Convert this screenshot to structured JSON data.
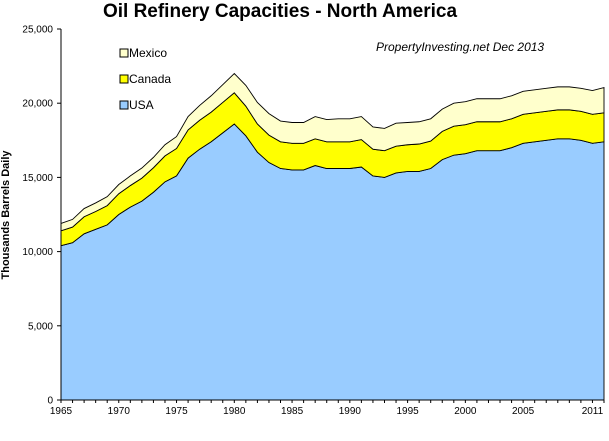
{
  "chart_data": {
    "type": "area",
    "stacked": true,
    "title": "Oil Refinery Capacities - North America",
    "ylabel": "Thousands Barrels Daily",
    "xlabel": "",
    "annotation": "PropertyInvesting.net  Dec 2013",
    "xlim": [
      1965,
      2012
    ],
    "ylim": [
      0,
      25000
    ],
    "yticks": [
      0,
      5000,
      10000,
      15000,
      20000,
      25000
    ],
    "ytick_labels": [
      "0",
      "5,000",
      "10,000",
      "15,000",
      "20,000",
      "25,000"
    ],
    "xticks": [
      1965,
      1970,
      1975,
      1980,
      1985,
      1990,
      1995,
      2000,
      2005,
      2011
    ],
    "xtick_labels": [
      "1965",
      "1970",
      "1975",
      "1980",
      "1985",
      "1990",
      "1995",
      "2000",
      "2005",
      "2011"
    ],
    "legend_position": "top-left",
    "x": [
      1965,
      1966,
      1967,
      1968,
      1969,
      1970,
      1971,
      1972,
      1973,
      1974,
      1975,
      1976,
      1977,
      1978,
      1979,
      1980,
      1981,
      1982,
      1983,
      1984,
      1985,
      1986,
      1987,
      1988,
      1989,
      1990,
      1991,
      1992,
      1993,
      1994,
      1995,
      1996,
      1997,
      1998,
      1999,
      2000,
      2001,
      2002,
      2003,
      2004,
      2005,
      2006,
      2007,
      2008,
      2009,
      2010,
      2011,
      2012
    ],
    "series": [
      {
        "name": "USA",
        "color": "#99ccff",
        "values": [
          10400,
          10600,
          11200,
          11500,
          11800,
          12500,
          13000,
          13400,
          14000,
          14700,
          15100,
          16300,
          16900,
          17400,
          18000,
          18600,
          17800,
          16700,
          16000,
          15600,
          15500,
          15500,
          15800,
          15600,
          15600,
          15600,
          15700,
          15100,
          15000,
          15300,
          15400,
          15400,
          15600,
          16200,
          16500,
          16600,
          16800,
          16800,
          16800,
          17000,
          17300,
          17400,
          17500,
          17600,
          17600,
          17500,
          17300,
          17400
        ]
      },
      {
        "name": "Canada",
        "color": "#ffff00",
        "values": [
          1000,
          1050,
          1150,
          1200,
          1300,
          1400,
          1450,
          1550,
          1650,
          1750,
          1850,
          1900,
          1950,
          2000,
          2050,
          2100,
          2000,
          1900,
          1850,
          1800,
          1800,
          1800,
          1800,
          1800,
          1800,
          1800,
          1850,
          1800,
          1800,
          1800,
          1800,
          1850,
          1850,
          1900,
          1950,
          1950,
          1950,
          1950,
          1950,
          1950,
          1950,
          1950,
          1950,
          1950,
          1950,
          1950,
          1950,
          1950
        ]
      },
      {
        "name": "Mexico",
        "color": "#ffffcc",
        "values": [
          500,
          520,
          550,
          580,
          600,
          620,
          650,
          680,
          700,
          750,
          800,
          900,
          1000,
          1100,
          1200,
          1300,
          1400,
          1450,
          1450,
          1400,
          1400,
          1400,
          1500,
          1500,
          1550,
          1550,
          1550,
          1500,
          1500,
          1550,
          1500,
          1500,
          1500,
          1500,
          1550,
          1550,
          1550,
          1550,
          1550,
          1550,
          1550,
          1550,
          1550,
          1550,
          1550,
          1550,
          1600,
          1700
        ]
      }
    ]
  }
}
